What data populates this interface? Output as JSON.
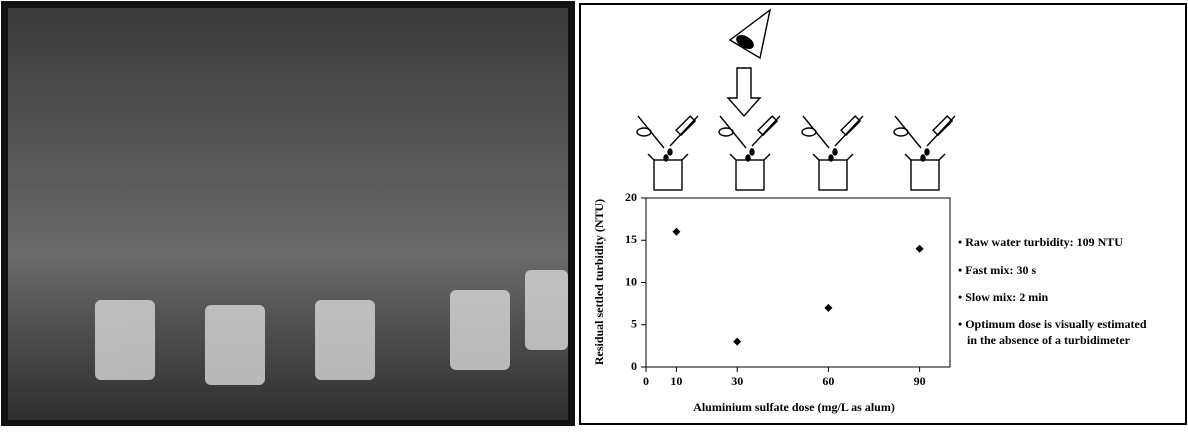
{
  "chart_data": {
    "type": "scatter",
    "x_label": "Aluminium sulfate dose (mg/L as alum)",
    "y_label": "Residual settled turbidity (NTU)",
    "x": [
      10,
      30,
      60,
      90
    ],
    "values": [
      16,
      3,
      7,
      14
    ],
    "color": "#000000",
    "xlim": [
      0,
      100
    ],
    "xticks": [
      0,
      10,
      30,
      60,
      90
    ],
    "ylim": [
      0,
      20
    ],
    "yticks": [
      0,
      5,
      10,
      15,
      20
    ],
    "annotations": [
      "• Raw water turbidity: 109 NTU",
      "• Fast mix: 30 s",
      "• Slow mix: 2 min",
      "• Optimum dose is visually estimated",
      "in the absence of a turbidimeter"
    ]
  }
}
